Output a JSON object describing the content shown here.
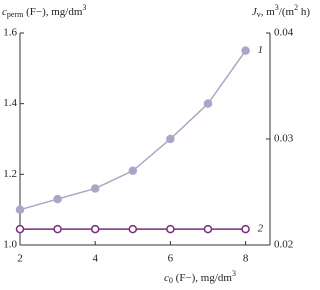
{
  "chart_data": {
    "type": "line",
    "ylabel": {
      "main": "c",
      "sub": "perm",
      "rest": " (F−), mg/dm",
      "sup": "3"
    },
    "y2label": {
      "main": "J",
      "sub": "v",
      "rest": ", m",
      "sup": "3",
      "rest2": "/(m",
      "sup2": "2",
      "rest3": " h)"
    },
    "xlabel": {
      "main": "c",
      "sub": "0",
      "rest": " (F−), mg/dm",
      "sup": "3"
    },
    "x": [
      2,
      3,
      4,
      5,
      6,
      7,
      8
    ],
    "xlim": [
      2,
      8.65
    ],
    "xticks": [
      2,
      4,
      6,
      8
    ],
    "ylim": [
      1.0,
      1.6
    ],
    "yticks": [
      {
        "value": 1.0,
        "label": "1.0"
      },
      1.2,
      1.4,
      1.6
    ],
    "y2lim": [
      0.02,
      0.04
    ],
    "y2ticks": [
      0.02,
      0.03,
      0.04
    ],
    "series": [
      {
        "name": "1",
        "color": "#a7a7c7",
        "marker": "filled",
        "values": [
          1.1,
          1.13,
          1.16,
          1.21,
          1.3,
          1.4,
          1.55
        ]
      },
      {
        "name": "2",
        "color": "#7a2d7c",
        "marker": "open",
        "axis": "y2",
        "values": [
          0.0215,
          0.0215,
          0.0215,
          0.0215,
          0.0215,
          0.0215,
          0.0215
        ]
      }
    ]
  }
}
